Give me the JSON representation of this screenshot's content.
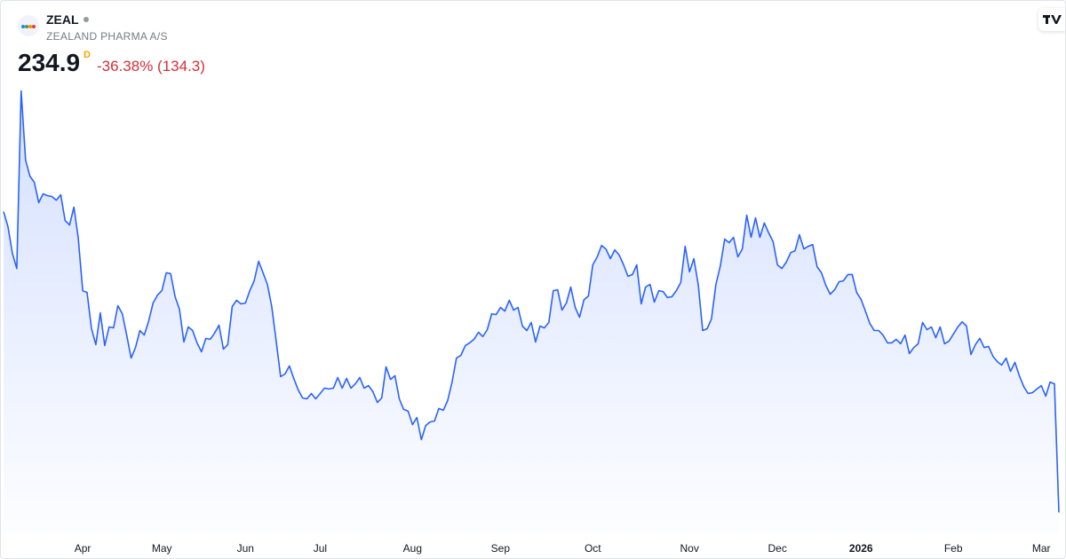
{
  "header": {
    "symbol": "ZEAL",
    "name": "ZEALAND PHARMA A/S",
    "price": "234.9",
    "interval": "D",
    "change": "-36.38% (134.3)"
  },
  "chart_data": {
    "type": "area",
    "color": "#2962ff",
    "ylim": [
      226,
      428
    ],
    "xticks": [
      {
        "value": 18,
        "label": "Apr"
      },
      {
        "value": 36,
        "label": "May"
      },
      {
        "value": 55,
        "label": "Jun"
      },
      {
        "value": 72,
        "label": "Jul"
      },
      {
        "value": 93,
        "label": "Aug"
      },
      {
        "value": 113,
        "label": "Sep"
      },
      {
        "value": 134,
        "label": "Oct"
      },
      {
        "value": 156,
        "label": "Nov"
      },
      {
        "value": 176,
        "label": "Dec"
      },
      {
        "value": 195,
        "label": "2026"
      },
      {
        "value": 216,
        "label": "Feb"
      },
      {
        "value": 236,
        "label": "Mar"
      }
    ],
    "values": [
      369.2,
      362.4,
      350.6,
      343.8,
      423.1,
      392.2,
      385.0,
      382.3,
      373.2,
      377.1,
      376.3,
      375.9,
      374.3,
      376.7,
      365.2,
      363.2,
      371.2,
      357.3,
      333.9,
      333.1,
      316.9,
      309.8,
      324.0,
      309.4,
      317.7,
      317.3,
      327.2,
      323.6,
      314.1,
      303.8,
      308.5,
      316.1,
      314.1,
      320.4,
      328.4,
      331.9,
      333.9,
      341.9,
      341.5,
      331.2,
      325.6,
      311.0,
      317.7,
      316.1,
      310.6,
      306.6,
      312.6,
      312.2,
      315.0,
      318.5,
      307.8,
      309.8,
      326.8,
      329.6,
      328.0,
      328.4,
      333.9,
      338.3,
      347.0,
      341.9,
      336.7,
      326.8,
      311.4,
      295.5,
      296.7,
      300.3,
      294.7,
      289.6,
      286.0,
      285.6,
      288.0,
      285.6,
      288.0,
      290.4,
      290.0,
      290.4,
      295.1,
      290.4,
      294.7,
      290.4,
      292.3,
      295.1,
      290.4,
      291.5,
      288.8,
      284.0,
      286.0,
      299.9,
      294.3,
      295.9,
      285.6,
      280.9,
      280.1,
      274.1,
      277.3,
      267.4,
      273.7,
      275.3,
      275.7,
      281.3,
      280.5,
      284.8,
      293.1,
      303.8,
      305.0,
      309.4,
      310.6,
      312.2,
      315.3,
      313.4,
      316.5,
      323.6,
      323.2,
      326.4,
      324.8,
      329.6,
      325.2,
      326.4,
      318.1,
      316.1,
      319.7,
      311.0,
      318.1,
      317.3,
      319.7,
      333.9,
      334.3,
      325.2,
      328.4,
      335.5,
      326.4,
      322.0,
      329.9,
      331.5,
      345.4,
      349.0,
      354.1,
      352.5,
      348.2,
      352.1,
      349.8,
      345.4,
      340.3,
      341.1,
      345.4,
      328.0,
      335.5,
      336.7,
      328.8,
      333.9,
      333.5,
      330.8,
      331.2,
      333.9,
      337.5,
      353.7,
      342.3,
      348.2,
      336.3,
      316.1,
      316.9,
      321.3,
      336.7,
      345.0,
      356.9,
      355.3,
      357.7,
      349.0,
      352.5,
      367.6,
      357.7,
      366.4,
      357.7,
      364.1,
      359.7,
      355.7,
      345.4,
      343.8,
      346.6,
      350.9,
      351.7,
      358.9,
      352.5,
      353.7,
      354.5,
      344.6,
      341.9,
      336.3,
      332.3,
      334.3,
      337.9,
      338.3,
      341.1,
      341.1,
      333.1,
      330.0,
      324.8,
      319.3,
      316.1,
      316.1,
      314.1,
      310.6,
      310.6,
      312.2,
      310.2,
      314.1,
      305.8,
      308.5,
      310.2,
      319.7,
      316.5,
      317.7,
      312.9,
      317.7,
      310.2,
      311.4,
      314.5,
      317.7,
      320.0,
      318.1,
      305.4,
      309.8,
      312.6,
      308.5,
      309.0,
      304.6,
      302.2,
      300.7,
      303.8,
      297.9,
      301.9,
      295.9,
      291.1,
      288.0,
      288.4,
      290.0,
      291.5,
      286.8,
      293.1,
      292.3,
      234.9
    ]
  }
}
